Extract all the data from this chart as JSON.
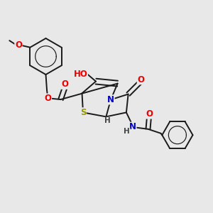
{
  "bg_color": "#e8e8e8",
  "bond_color": "#1a1a1a",
  "atom_colors": {
    "O": "#ee0000",
    "N": "#0000cc",
    "S": "#999900",
    "H": "#444444",
    "C": "#1a1a1a"
  },
  "lw": 1.4,
  "fs": 8.5,
  "fss": 7.5,
  "dbo": 0.013
}
